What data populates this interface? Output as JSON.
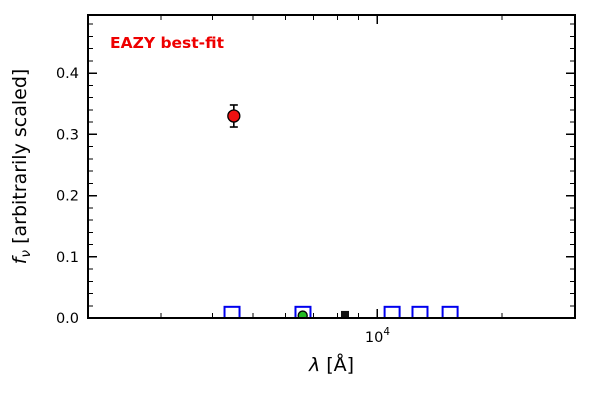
{
  "figure": {
    "background": "#ffffff"
  },
  "chart_data": {
    "type": "scatter",
    "title": "",
    "annotation": {
      "text": "EAZY best-fit",
      "color": "#ee0000"
    },
    "xlabel_parts": [
      {
        "t": "λ",
        "italic": true
      },
      {
        "t": " [Å]"
      }
    ],
    "ylabel_parts": [
      {
        "t": "f",
        "italic": true
      },
      {
        "t": "ν",
        "sub": true,
        "italic": true
      },
      {
        "t": " [arbitrarily scaled]"
      }
    ],
    "xscale": "log",
    "xlim": [
      2000,
      30000
    ],
    "ylim": [
      0,
      0.495
    ],
    "grid": false,
    "legend": "none",
    "frame_color": "#000000",
    "yticks": [
      {
        "value": 0.0,
        "label": "0.0"
      },
      {
        "value": 0.1,
        "label": "0.1"
      },
      {
        "value": 0.2,
        "label": "0.2"
      },
      {
        "value": 0.3,
        "label": "0.3"
      },
      {
        "value": 0.4,
        "label": "0.4"
      }
    ],
    "y_minor_step": 0.02,
    "xticks": [
      {
        "value": 10000,
        "label": "10",
        "sup": "4"
      }
    ],
    "x_minor": [
      3000,
      4000,
      5000,
      6000,
      7000,
      8000,
      9000,
      20000
    ],
    "series": [
      {
        "name": "best-fit-point-red",
        "marker": "circle",
        "fill": "#ee1111",
        "edge": "#000000",
        "size": 6,
        "points": [
          {
            "x": 4500,
            "y": 0.33,
            "yerr": 0.018
          }
        ]
      },
      {
        "name": "template-photometry-blue-squares",
        "marker": "square-open",
        "stroke": "#0000ee",
        "size": 15,
        "points": [
          {
            "x": 4455,
            "y": 0.006
          },
          {
            "x": 6610,
            "y": 0.006
          },
          {
            "x": 10850,
            "y": 0.006
          },
          {
            "x": 12670,
            "y": 0.006
          },
          {
            "x": 14980,
            "y": 0.006
          }
        ]
      },
      {
        "name": "observed-point-green",
        "marker": "circle",
        "fill": "#22bb22",
        "edge": "#000000",
        "size": 4.5,
        "points": [
          {
            "x": 6600,
            "y": 0.004
          }
        ]
      },
      {
        "name": "observed-point-dark-square",
        "marker": "square-filled",
        "fill": "#111111",
        "size": 8,
        "points": [
          {
            "x": 8350,
            "y": 0.005
          }
        ]
      }
    ]
  }
}
